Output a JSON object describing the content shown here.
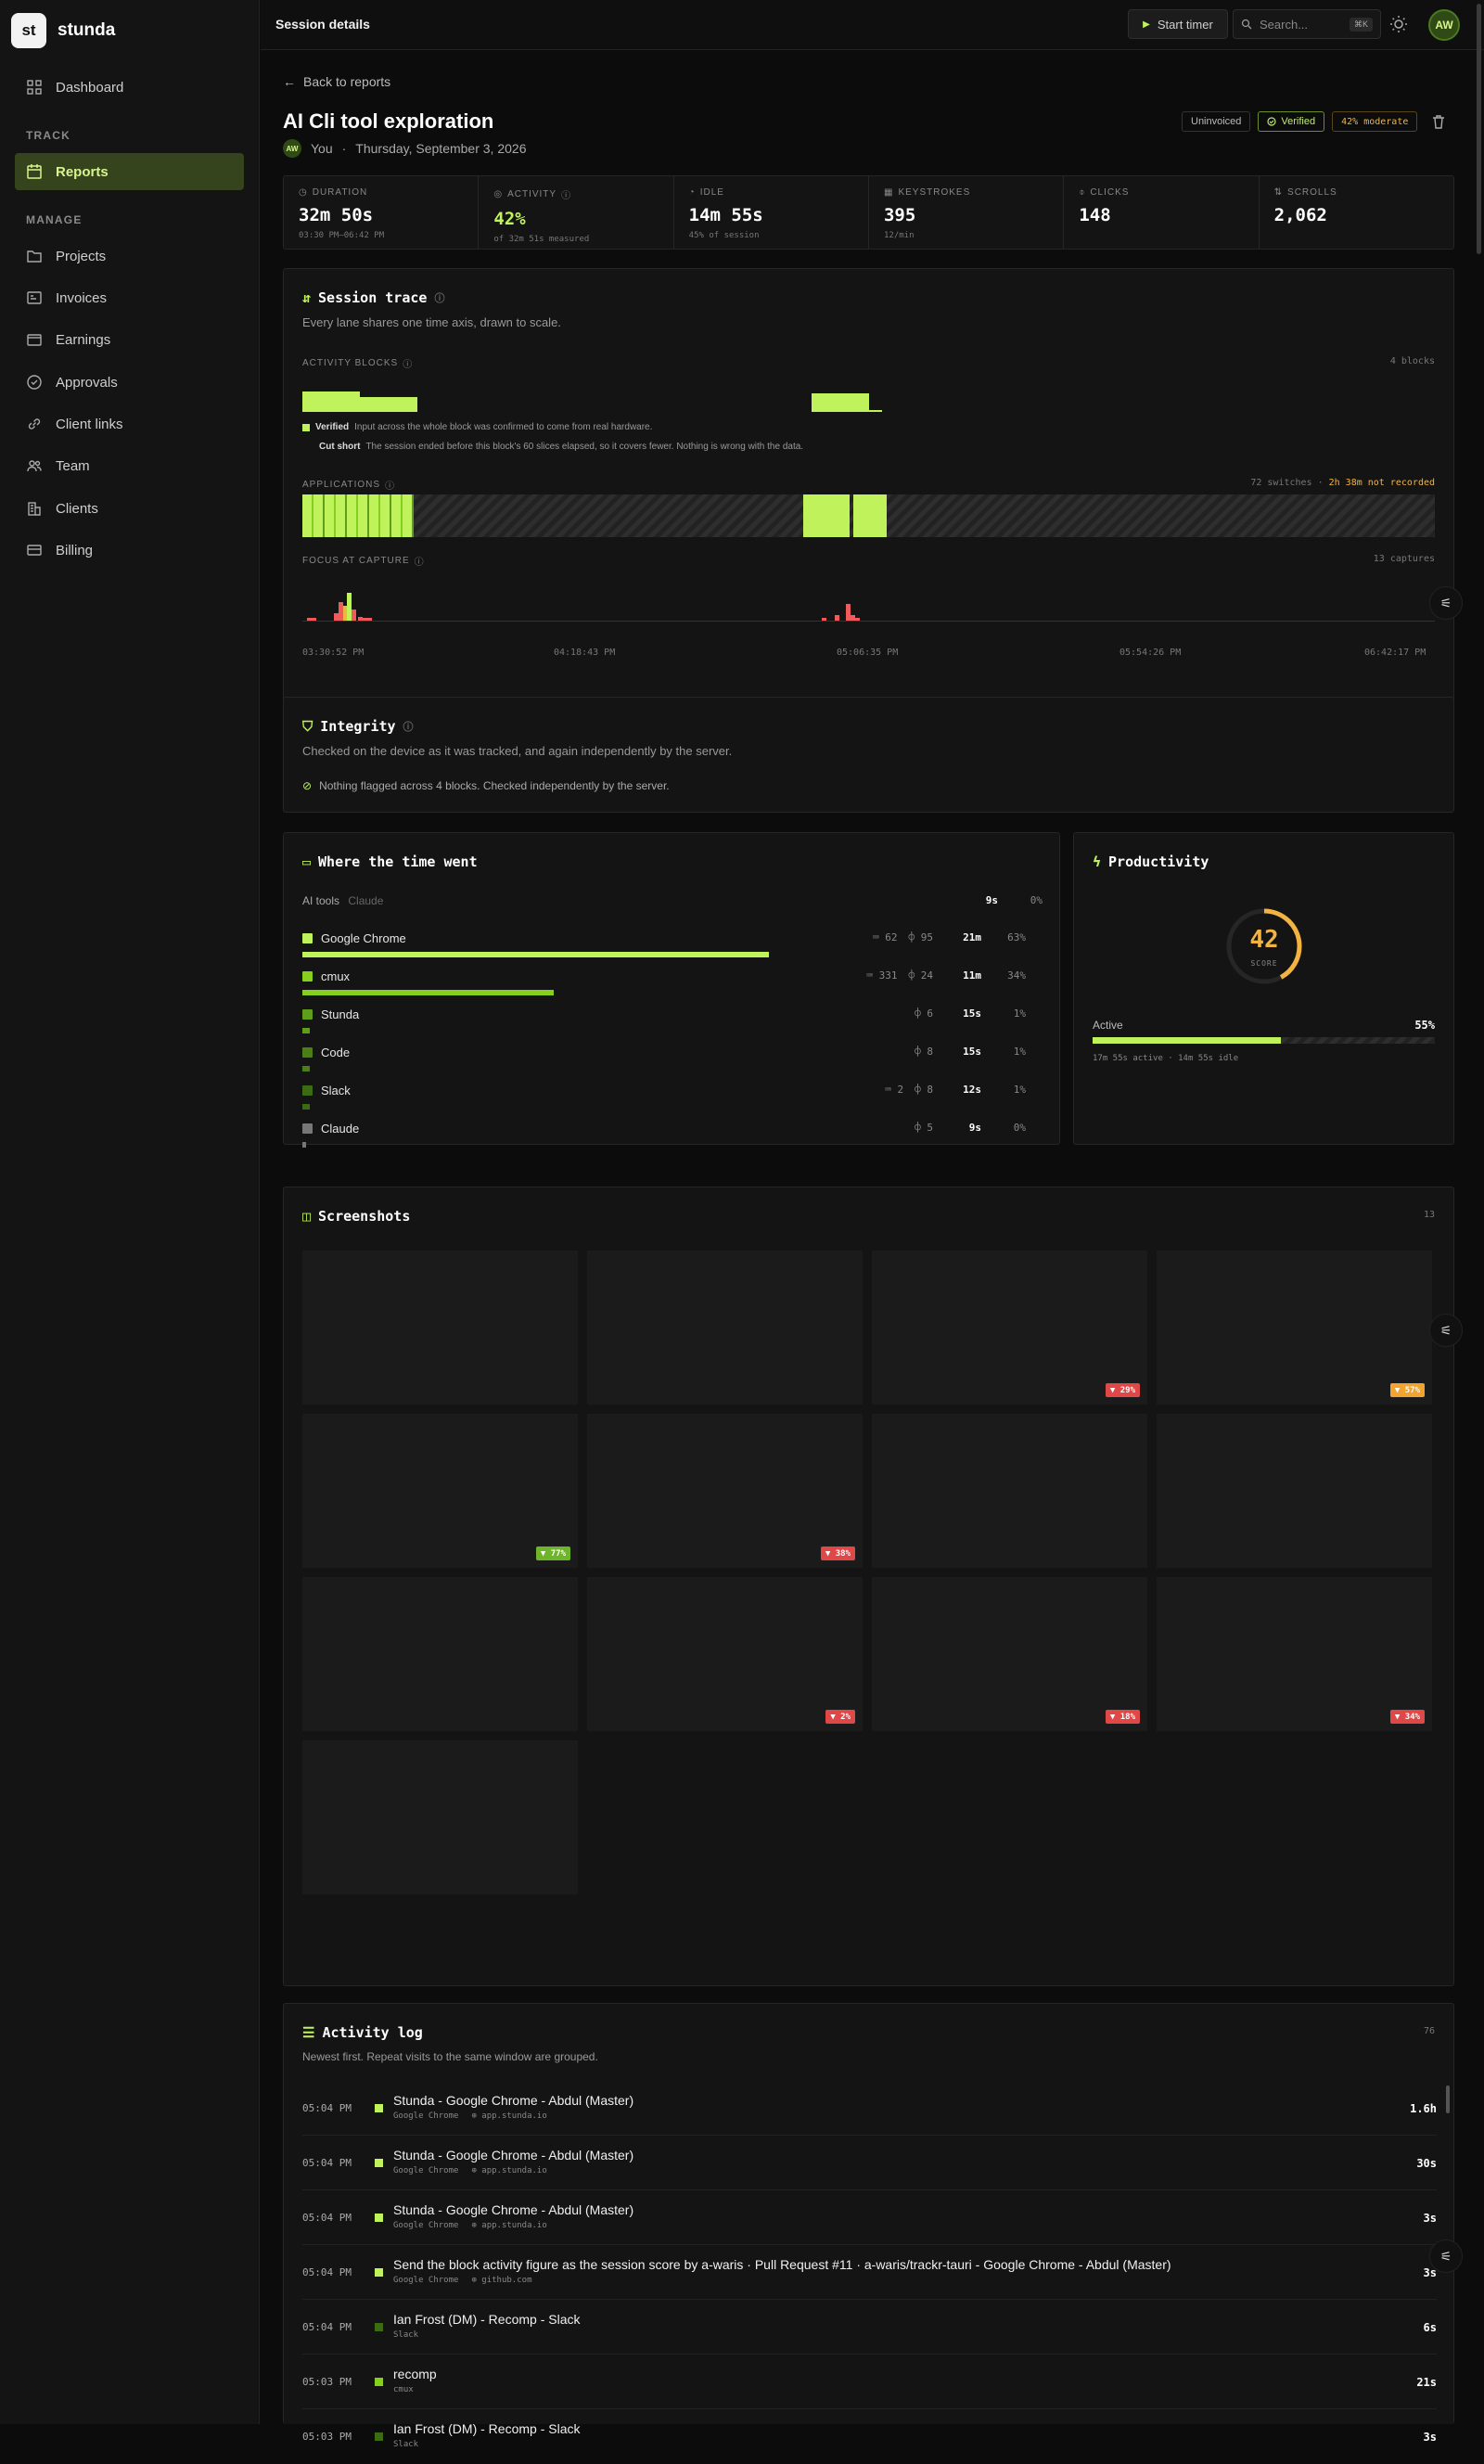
{
  "brand": {
    "logo": "st",
    "name": "stunda"
  },
  "nav": {
    "dashboard": "Dashboard",
    "section_track": "TRACK",
    "reports": "Reports",
    "section_manage": "MANAGE",
    "projects": "Projects",
    "invoices": "Invoices",
    "earnings": "Earnings",
    "approvals": "Approvals",
    "client_links": "Client links",
    "team": "Team",
    "clients": "Clients",
    "billing": "Billing"
  },
  "topbar": {
    "title": "Session details",
    "start_timer": "Start timer",
    "search_placeholder": "Search...",
    "search_kbd": "⌘K",
    "avatar": "AW"
  },
  "session": {
    "back": "Back to reports",
    "title": "AI Cli tool exploration",
    "avatar": "AW",
    "user": "You",
    "sep": "·",
    "date": "Thursday, September 3, 2026",
    "badge_invoice": "Uninvoiced",
    "badge_verified": "Verified",
    "badge_moderate": "42% moderate"
  },
  "stats": {
    "duration": {
      "label": "DURATION",
      "value": "32m 50s",
      "sub": "03:30 PM–06:42 PM"
    },
    "activity": {
      "label": "ACTIVITY",
      "value": "42%",
      "sub": "of 32m 51s measured"
    },
    "idle": {
      "label": "IDLE",
      "value": "14m 55s",
      "sub": "45% of session"
    },
    "keystrokes": {
      "label": "KEYSTROKES",
      "value": "395",
      "sub": "12/min"
    },
    "clicks": {
      "label": "CLICKS",
      "value": "148"
    },
    "scrolls": {
      "label": "SCROLLS",
      "value": "2,062"
    }
  },
  "trace": {
    "title": "Session trace",
    "subtitle": "Every lane shares one time axis, drawn to scale.",
    "activity_label": "ACTIVITY BLOCKS",
    "activity_count": "4 blocks",
    "verified_label": "Verified",
    "verified_text": "Input across the whole block was confirmed to come from real hardware.",
    "cutshort_label": "Cut short",
    "cutshort_text": "The session ended before this block's 60 slices elapsed, so it covers fewer. Nothing is wrong with the data.",
    "apps_label": "APPLICATIONS",
    "apps_switches": "72 switches",
    "apps_sep": "·",
    "apps_not_recorded": "2h 38m not recorded",
    "focus_label": "FOCUS AT CAPTURE",
    "focus_count": "13 captures",
    "ticks": [
      "03:30:52 PM",
      "04:18:43 PM",
      "05:06:35 PM",
      "05:54:26 PM",
      "06:42:17 PM"
    ]
  },
  "integrity": {
    "title": "Integrity",
    "subtitle": "Checked on the device as it was tracked, and again independently by the server.",
    "status": "Nothing flagged across 4 blocks. Checked independently by the server."
  },
  "time_went": {
    "title": "Where the time went",
    "group_label": "AI tools",
    "group_app": "Claude",
    "group_dur": "9s",
    "group_pct": "0%",
    "apps": [
      {
        "name": "Google Chrome",
        "keys": "62",
        "clicks": "95",
        "dur": "21m",
        "pct": "63%",
        "share": 0.63,
        "color": "#bff25b"
      },
      {
        "name": "cmux",
        "keys": "331",
        "clicks": "24",
        "dur": "11m",
        "pct": "34%",
        "share": 0.34,
        "color": "#86cf1e"
      },
      {
        "name": "Stunda",
        "keys": "",
        "clicks": "6",
        "dur": "15s",
        "pct": "1%",
        "share": 0.01,
        "color": "#5f9e1a"
      },
      {
        "name": "Code",
        "keys": "",
        "clicks": "8",
        "dur": "15s",
        "pct": "1%",
        "share": 0.01,
        "color": "#4b7f16"
      },
      {
        "name": "Slack",
        "keys": "2",
        "clicks": "8",
        "dur": "12s",
        "pct": "1%",
        "share": 0.01,
        "color": "#3d6b14"
      },
      {
        "name": "Claude",
        "keys": "",
        "clicks": "5",
        "dur": "9s",
        "pct": "0%",
        "share": 0.004,
        "color": "#777777"
      }
    ]
  },
  "productivity": {
    "title": "Productivity",
    "score": "42",
    "score_label": "SCORE",
    "score_value": 0.42,
    "active_label": "Active",
    "active_pct": "55%",
    "active_share": 0.55,
    "detail": "17m 55s active · 14m 55s idle"
  },
  "screenshots": {
    "title": "Screenshots",
    "count": "13",
    "badges": {
      "s3": "▼ 29%",
      "s4": "▼ 57%",
      "s5": "▼ 77%",
      "s6": "▼ 38%",
      "s10": "▼ 2%",
      "s11": "▼ 18%",
      "s12": "▼ 34%"
    }
  },
  "log": {
    "title": "Activity log",
    "count": "76",
    "subtitle": "Newest first. Repeat visits to the same window are grouped.",
    "rows": [
      {
        "time": "05:04 PM",
        "title": "Stunda - Google Chrome - Abdul (Master)",
        "app": "Google Chrome",
        "domain": "app.stunda.io",
        "dur": "1.6h"
      },
      {
        "time": "05:04 PM",
        "title": "Stunda - Google Chrome - Abdul (Master)",
        "app": "Google Chrome",
        "domain": "app.stunda.io",
        "dur": "30s"
      },
      {
        "time": "05:04 PM",
        "title": "Stunda - Google Chrome - Abdul (Master)",
        "app": "Google Chrome",
        "domain": "app.stunda.io",
        "dur": "3s"
      },
      {
        "time": "05:04 PM",
        "title": "Send the block activity figure as the session score by a-waris · Pull Request #11 · a-waris/trackr-tauri - Google Chrome - Abdul (Master)",
        "app": "Google Chrome",
        "domain": "github.com",
        "dur": "3s"
      },
      {
        "time": "05:04 PM",
        "title": "Ian Frost (DM) - Recomp - Slack",
        "app": "Slack",
        "domain": "",
        "dur": "6s"
      },
      {
        "time": "05:03 PM",
        "title": "recomp",
        "app": "cmux",
        "domain": "",
        "dur": "21s"
      },
      {
        "time": "05:03 PM",
        "title": "Ian Frost (DM) - Recomp - Slack",
        "app": "Slack",
        "domain": "",
        "dur": "3s"
      }
    ]
  }
}
